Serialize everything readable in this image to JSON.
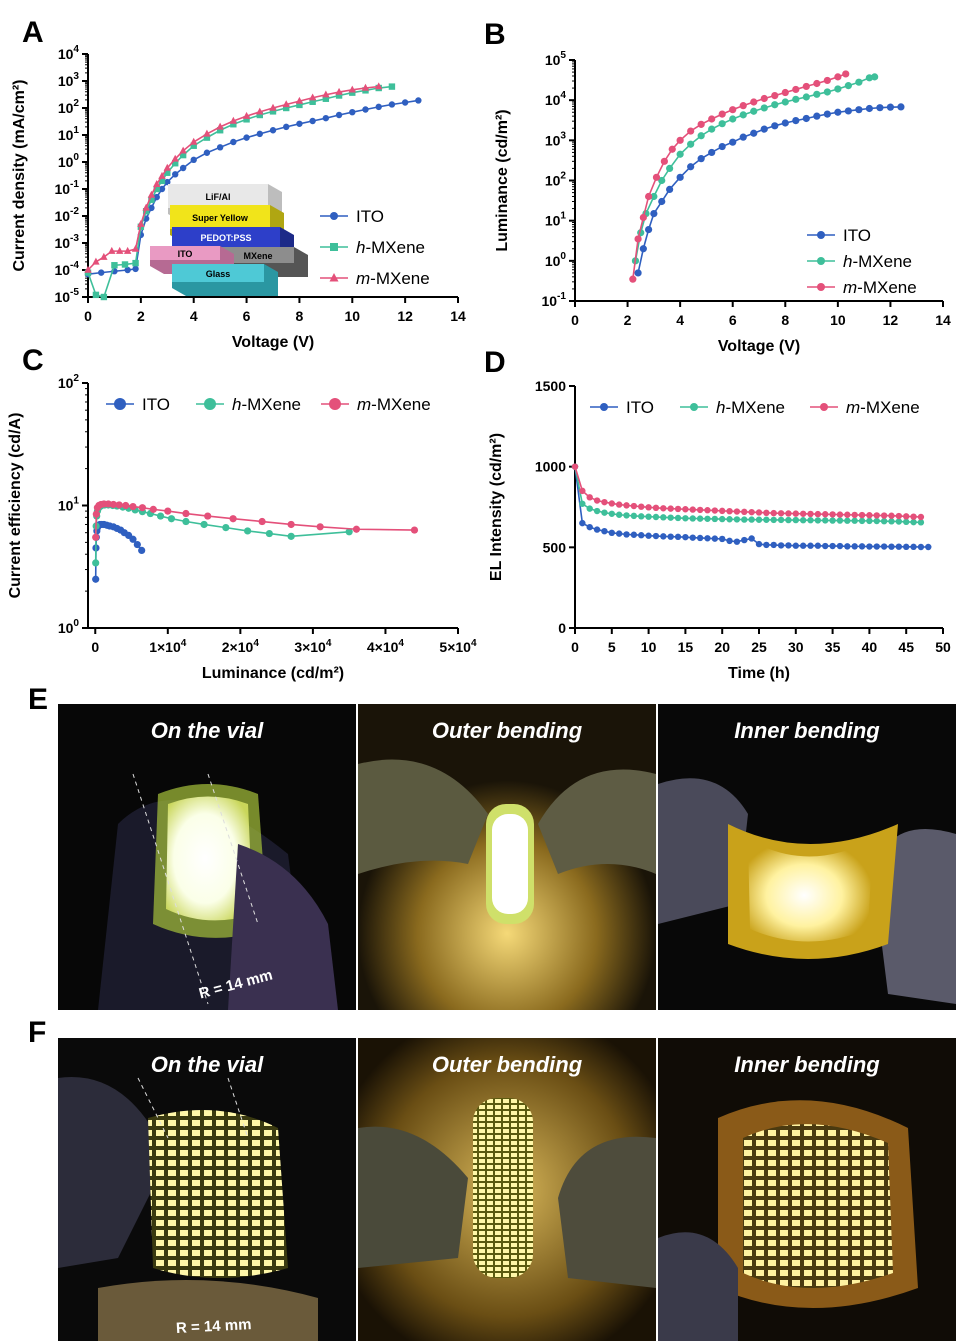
{
  "panels": {
    "A": "A",
    "B": "B",
    "C": "C",
    "D": "D",
    "E": "E",
    "F": "F"
  },
  "colors": {
    "ITO": "#2f5fc0",
    "h-MXene": "#3ebf9a",
    "m-MXene": "#e4507a"
  },
  "legend_series": [
    {
      "prefix": "",
      "italic": "",
      "rest": "ITO"
    },
    {
      "prefix": "",
      "italic": "h",
      "rest": "-MXene"
    },
    {
      "prefix": "",
      "italic": "m",
      "rest": "-MXene"
    }
  ],
  "inset": {
    "layers": [
      "LiF/Al",
      "Super Yellow",
      "PEDOT:PSS",
      "MXene",
      "ITO",
      "Glass"
    ]
  },
  "chart_data": [
    {
      "id": "A",
      "type": "line",
      "xscale": "linear",
      "yscale": "log",
      "xlabel": "Voltage (V)",
      "ylabel": "Current density (mA/cm²)",
      "xlim": [
        0,
        14
      ],
      "ylim": [
        1e-05,
        10000.0
      ],
      "xticks": [
        0,
        2,
        4,
        6,
        8,
        10,
        12,
        14
      ],
      "yticks": [
        {
          "v": 1e-05,
          "t": "10",
          "e": "-5"
        },
        {
          "v": 0.0001,
          "t": "10",
          "e": "-4"
        },
        {
          "v": 0.001,
          "t": "10",
          "e": "-3"
        },
        {
          "v": 0.01,
          "t": "10",
          "e": "-2"
        },
        {
          "v": 0.1,
          "t": "10",
          "e": "-1"
        },
        {
          "v": 1,
          "t": "10",
          "e": "0"
        },
        {
          "v": 10,
          "t": "10",
          "e": "1"
        },
        {
          "v": 100,
          "t": "10",
          "e": "2"
        },
        {
          "v": 1000,
          "t": "10",
          "e": "3"
        },
        {
          "v": 10000,
          "t": "10",
          "e": "4"
        }
      ],
      "legend": "right",
      "series": [
        {
          "name": "ITO",
          "marker": "circle",
          "x": [
            0,
            0.5,
            1,
            1.5,
            1.8,
            2,
            2.2,
            2.4,
            2.6,
            2.8,
            3,
            3.3,
            3.6,
            4,
            4.5,
            5,
            5.5,
            6,
            6.5,
            7,
            7.5,
            8,
            8.5,
            9,
            9.5,
            10,
            10.5,
            11,
            11.5,
            12,
            12.5
          ],
          "y": [
            7e-05,
            8e-05,
            9e-05,
            0.0001,
            0.00011,
            0.002,
            0.008,
            0.02,
            0.05,
            0.1,
            0.18,
            0.35,
            0.6,
            1.2,
            2.2,
            3.5,
            5.5,
            8,
            11,
            15,
            20,
            26,
            33,
            42,
            55,
            70,
            88,
            110,
            135,
            160,
            190
          ]
        },
        {
          "name": "h-MXene",
          "marker": "square",
          "x": [
            0,
            0.3,
            0.6,
            1,
            1.4,
            1.8,
            2,
            2.2,
            2.4,
            2.6,
            2.8,
            3,
            3.3,
            3.6,
            4,
            4.5,
            5,
            5.5,
            6,
            6.5,
            7,
            7.5,
            8,
            8.5,
            9,
            9.5,
            10,
            10.5,
            11,
            11.5
          ],
          "y": [
            8e-05,
            1.2e-05,
            1e-05,
            0.00015,
            0.00016,
            0.00018,
            0.004,
            0.015,
            0.04,
            0.1,
            0.2,
            0.4,
            0.9,
            1.8,
            4,
            8,
            15,
            25,
            38,
            55,
            75,
            100,
            130,
            170,
            220,
            290,
            370,
            450,
            550,
            620
          ]
        },
        {
          "name": "m-MXene",
          "marker": "triangle",
          "x": [
            0,
            0.3,
            0.6,
            0.9,
            1.2,
            1.5,
            1.8,
            2,
            2.2,
            2.4,
            2.6,
            2.8,
            3,
            3.3,
            3.6,
            4,
            4.5,
            5,
            5.5,
            6,
            6.5,
            7,
            7.5,
            8,
            8.5,
            9,
            9.5,
            10,
            10.5,
            11
          ],
          "y": [
            0.0001,
            0.0002,
            0.0003,
            0.0005,
            0.0005,
            0.0005,
            0.0006,
            0.005,
            0.02,
            0.06,
            0.15,
            0.3,
            0.6,
            1.3,
            2.6,
            5.5,
            11,
            20,
            33,
            50,
            72,
            100,
            135,
            180,
            240,
            310,
            390,
            470,
            550,
            620
          ]
        }
      ]
    },
    {
      "id": "B",
      "type": "line",
      "xscale": "linear",
      "yscale": "log",
      "xlabel": "Voltage (V)",
      "ylabel": "Luminance (cd/m²)",
      "xlim": [
        0,
        14
      ],
      "ylim": [
        0.1,
        100000.0
      ],
      "xticks": [
        0,
        2,
        4,
        6,
        8,
        10,
        12,
        14
      ],
      "yticks": [
        {
          "v": 0.1,
          "t": "10",
          "e": "-1"
        },
        {
          "v": 1,
          "t": "10",
          "e": "0"
        },
        {
          "v": 10,
          "t": "10",
          "e": "1"
        },
        {
          "v": 100,
          "t": "10",
          "e": "2"
        },
        {
          "v": 1000,
          "t": "10",
          "e": "3"
        },
        {
          "v": 10000,
          "t": "10",
          "e": "4"
        },
        {
          "v": 100000,
          "t": "10",
          "e": "5"
        }
      ],
      "legend": "bottom-right",
      "series": [
        {
          "name": "ITO",
          "marker": "circle",
          "x": [
            2.4,
            2.6,
            2.8,
            3,
            3.3,
            3.6,
            4,
            4.4,
            4.8,
            5.2,
            5.6,
            6,
            6.4,
            6.8,
            7.2,
            7.6,
            8,
            8.4,
            8.8,
            9.2,
            9.6,
            10,
            10.4,
            10.8,
            11.2,
            11.6,
            12,
            12.4
          ],
          "y": [
            0.5,
            2,
            6,
            15,
            30,
            60,
            120,
            220,
            350,
            500,
            700,
            900,
            1200,
            1500,
            1900,
            2300,
            2700,
            3100,
            3500,
            4000,
            4500,
            5000,
            5400,
            5800,
            6200,
            6500,
            6700,
            6800
          ]
        },
        {
          "name": "h-MXene",
          "marker": "circle",
          "x": [
            2.3,
            2.5,
            2.7,
            3,
            3.3,
            3.6,
            4,
            4.4,
            4.8,
            5.2,
            5.6,
            6,
            6.4,
            6.8,
            7.2,
            7.6,
            8,
            8.4,
            8.8,
            9.2,
            9.6,
            10,
            10.4,
            10.8,
            11.2,
            11.4
          ],
          "y": [
            1,
            5,
            15,
            40,
            100,
            200,
            450,
            800,
            1300,
            1900,
            2600,
            3400,
            4300,
            5300,
            6400,
            7700,
            9000,
            10500,
            12000,
            14000,
            16000,
            19000,
            23000,
            28000,
            36000,
            38000
          ]
        },
        {
          "name": "m-MXene",
          "marker": "circle",
          "x": [
            2.2,
            2.4,
            2.6,
            2.8,
            3.1,
            3.4,
            3.7,
            4,
            4.4,
            4.8,
            5.2,
            5.6,
            6,
            6.4,
            6.8,
            7.2,
            7.6,
            8,
            8.4,
            8.8,
            9.2,
            9.6,
            10,
            10.3
          ],
          "y": [
            0.35,
            3.5,
            12,
            40,
            120,
            300,
            600,
            1000,
            1700,
            2500,
            3400,
            4500,
            5800,
            7300,
            9000,
            11000,
            13000,
            15500,
            18500,
            22000,
            26000,
            31000,
            38000,
            45000
          ]
        }
      ]
    },
    {
      "id": "C",
      "type": "line",
      "xscale": "linear",
      "yscale": "log",
      "xlabel": "Luminance (cd/m²)",
      "ylabel": "Current efficiency (cd/A)",
      "xlim": [
        -1000,
        50000
      ],
      "ylim": [
        1,
        100
      ],
      "xticks": [
        {
          "v": 0,
          "t": "0",
          "e": ""
        },
        {
          "v": 10000,
          "t": "1×10",
          "e": "4"
        },
        {
          "v": 20000,
          "t": "2×10",
          "e": "4"
        },
        {
          "v": 30000,
          "t": "3×10",
          "e": "4"
        },
        {
          "v": 40000,
          "t": "4×10",
          "e": "4"
        },
        {
          "v": 50000,
          "t": "5×10",
          "e": "4"
        }
      ],
      "yticks": [
        {
          "v": 1,
          "t": "10",
          "e": "0"
        },
        {
          "v": 10,
          "t": "10",
          "e": "1"
        },
        {
          "v": 100,
          "t": "10",
          "e": "2"
        }
      ],
      "legend": "top",
      "series": [
        {
          "name": "ITO",
          "marker": "circle",
          "x": [
            60,
            100,
            150,
            220,
            300,
            450,
            650,
            900,
            1200,
            1600,
            2000,
            2500,
            3000,
            3500,
            4000,
            4600,
            5200,
            5800,
            6400
          ],
          "y": [
            2.5,
            4.5,
            5.5,
            6.2,
            6.6,
            6.9,
            7.0,
            7.0,
            7.0,
            6.9,
            6.8,
            6.7,
            6.5,
            6.3,
            6.0,
            5.7,
            5.3,
            4.8,
            4.3
          ]
        },
        {
          "name": "h-MXene",
          "marker": "circle",
          "x": [
            60,
            120,
            200,
            300,
            450,
            650,
            900,
            1300,
            1800,
            2400,
            3000,
            3800,
            4600,
            5500,
            6500,
            7600,
            9000,
            10500,
            12500,
            15000,
            18000,
            21000,
            24000,
            27000,
            35000
          ],
          "y": [
            3.4,
            6.8,
            8.2,
            9.0,
            9.5,
            9.8,
            10.0,
            10.1,
            10.1,
            10.0,
            9.9,
            9.7,
            9.5,
            9.2,
            8.9,
            8.6,
            8.2,
            7.8,
            7.4,
            7.0,
            6.6,
            6.2,
            5.9,
            5.6,
            6.1
          ]
        },
        {
          "name": "m-MXene",
          "marker": "circle",
          "x": [
            60,
            150,
            300,
            500,
            800,
            1200,
            1800,
            2500,
            3300,
            4200,
            5200,
            6500,
            8000,
            10000,
            12500,
            15500,
            19000,
            23000,
            27000,
            31000,
            36000,
            44000
          ],
          "y": [
            5.5,
            8.5,
            9.6,
            10.0,
            10.2,
            10.3,
            10.3,
            10.2,
            10.1,
            10.0,
            9.8,
            9.6,
            9.3,
            9.0,
            8.6,
            8.2,
            7.8,
            7.4,
            7.0,
            6.7,
            6.4,
            6.3
          ]
        }
      ]
    },
    {
      "id": "D",
      "type": "line",
      "xscale": "linear",
      "yscale": "linear",
      "xlabel": "Time (h)",
      "ylabel": "EL Intensity (cd/m²)",
      "xlim": [
        0,
        50
      ],
      "ylim": [
        0,
        1500
      ],
      "xticks": [
        0,
        5,
        10,
        15,
        20,
        25,
        30,
        35,
        40,
        45,
        50
      ],
      "yticks": [
        {
          "v": 0,
          "t": "0",
          "e": ""
        },
        {
          "v": 500,
          "t": "500",
          "e": ""
        },
        {
          "v": 1000,
          "t": "1000",
          "e": ""
        },
        {
          "v": 1500,
          "t": "1500",
          "e": ""
        }
      ],
      "legend": "top",
      "series": [
        {
          "name": "ITO",
          "marker": "circle",
          "x": [
            0,
            1,
            2,
            3,
            4,
            5,
            6,
            7,
            8,
            9,
            10,
            11,
            12,
            13,
            14,
            15,
            16,
            17,
            18,
            19,
            20,
            21,
            22,
            23,
            24,
            25,
            26,
            27,
            28,
            29,
            30,
            31,
            32,
            33,
            34,
            35,
            36,
            37,
            38,
            39,
            40,
            41,
            42,
            43,
            44,
            45,
            46,
            47,
            48
          ],
          "y": [
            1000,
            650,
            625,
            610,
            600,
            590,
            585,
            580,
            578,
            575,
            572,
            570,
            568,
            566,
            565,
            563,
            560,
            558,
            556,
            554,
            552,
            540,
            535,
            545,
            555,
            520,
            515,
            515,
            512,
            512,
            510,
            510,
            510,
            510,
            508,
            508,
            508,
            506,
            506,
            506,
            505,
            505,
            505,
            504,
            504,
            503,
            503,
            502,
            502
          ]
        },
        {
          "name": "h-MXene",
          "marker": "circle",
          "x": [
            0,
            1,
            2,
            3,
            4,
            5,
            6,
            7,
            8,
            9,
            10,
            11,
            12,
            13,
            14,
            15,
            16,
            17,
            18,
            19,
            20,
            21,
            22,
            23,
            24,
            25,
            26,
            27,
            28,
            29,
            30,
            31,
            32,
            33,
            34,
            35,
            36,
            37,
            38,
            39,
            40,
            41,
            42,
            43,
            44,
            45,
            46,
            47
          ],
          "y": [
            1000,
            770,
            740,
            725,
            715,
            708,
            702,
            698,
            695,
            692,
            690,
            688,
            686,
            684,
            682,
            680,
            679,
            678,
            677,
            676,
            675,
            674,
            673,
            672,
            672,
            671,
            671,
            670,
            670,
            669,
            669,
            668,
            668,
            667,
            667,
            666,
            666,
            665,
            665,
            664,
            664,
            663,
            662,
            661,
            660,
            658,
            656,
            655
          ]
        },
        {
          "name": "m-MXene",
          "marker": "circle",
          "x": [
            0,
            1,
            2,
            3,
            4,
            5,
            6,
            7,
            8,
            9,
            10,
            11,
            12,
            13,
            14,
            15,
            16,
            17,
            18,
            19,
            20,
            21,
            22,
            23,
            24,
            25,
            26,
            27,
            28,
            29,
            30,
            31,
            32,
            33,
            34,
            35,
            36,
            37,
            38,
            39,
            40,
            41,
            42,
            43,
            44,
            45,
            46,
            47
          ],
          "y": [
            1000,
            850,
            810,
            790,
            780,
            772,
            765,
            760,
            756,
            752,
            748,
            745,
            742,
            740,
            738,
            736,
            734,
            732,
            730,
            728,
            726,
            724,
            722,
            720,
            718,
            716,
            714,
            712,
            711,
            710,
            709,
            708,
            707,
            706,
            705,
            704,
            703,
            702,
            701,
            700,
            699,
            698,
            697,
            696,
            694,
            692,
            690,
            688
          ]
        }
      ]
    }
  ],
  "photos": {
    "E": {
      "captions": [
        "On the vial",
        "Outer bending",
        "Inner bending"
      ],
      "radius_label": "R = 14 mm"
    },
    "F": {
      "captions": [
        "On the vial",
        "Outer bending",
        "Inner bending"
      ],
      "radius_label": "R = 14 mm"
    }
  }
}
